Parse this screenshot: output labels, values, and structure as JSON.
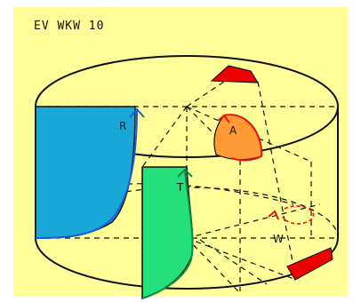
{
  "diagram": {
    "title": "EV WKW 10",
    "labels": {
      "r": "R",
      "a": "A",
      "t": "T",
      "w": "W"
    },
    "colors": {
      "background": "#ffff99",
      "panel_r": "#18a8d8",
      "panel_t": "#22e07a",
      "panel_a": "#ff9933",
      "wedge": "#ee0000",
      "arrow_blue": "#1a5fe0",
      "arrow_green": "#0a8a3f",
      "arrow_red": "#ee1111",
      "outline": "#111111"
    }
  }
}
